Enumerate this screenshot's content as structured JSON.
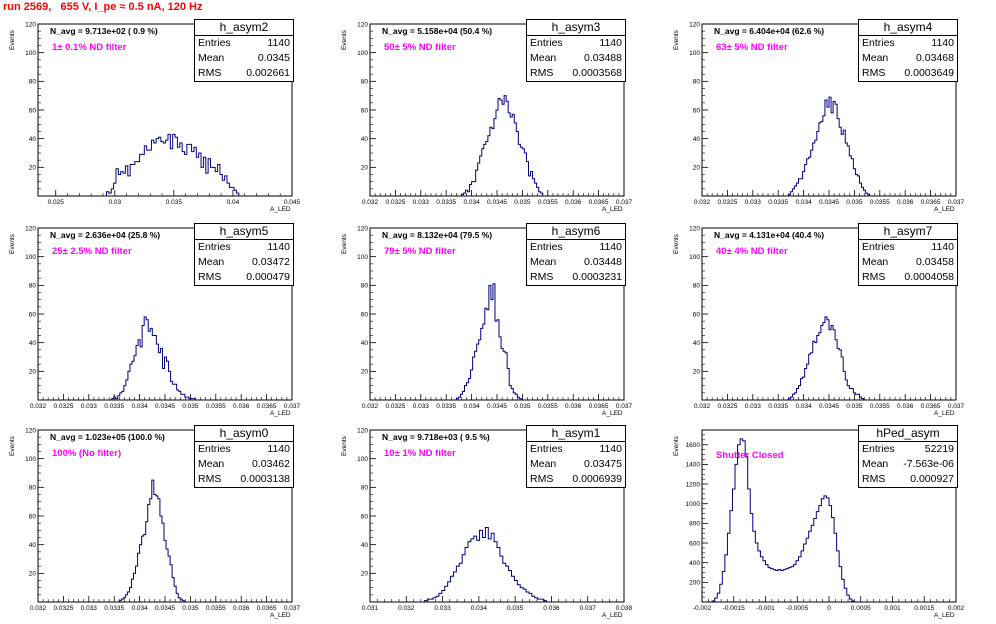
{
  "title": "run 2569,   655 V, I_pe ≈ 0.5 nA, 120 Hz",
  "colors": {
    "title": "#ff0000",
    "hist": "#000080",
    "filter_text": "#ff00ff"
  },
  "stat_labels": {
    "entries": "Entries",
    "mean": "Mean",
    "rms": "RMS"
  },
  "chart_data": [
    {
      "type": "bar",
      "name": "h_asym2",
      "navg": "N_avg = 9.713e+02 ( 0.9 %)",
      "annotation": "1± 0.1% ND filter",
      "stats": {
        "entries": "1140",
        "mean": "0.0345",
        "rms": "0.002661"
      },
      "ylabel": "Events",
      "xlabel": "A_LED",
      "xlim": [
        0.0235,
        0.045
      ],
      "ylim": [
        0,
        120
      ],
      "xticks": [
        0.025,
        0.03,
        0.035,
        0.04,
        0.045
      ],
      "xtick_labels": [
        "0.025",
        "0.03",
        "0.035",
        "0.04",
        "0.045"
      ],
      "yticks": [
        20,
        40,
        60,
        80,
        100,
        120
      ],
      "bins": {
        "start": 0.0293,
        "width": 0.0002,
        "counts": [
          3,
          2,
          5,
          9,
          19,
          15,
          17,
          16,
          21,
          14,
          22,
          22,
          24,
          24,
          29,
          29,
          35,
          32,
          32,
          39,
          37,
          40,
          41,
          38,
          37,
          39,
          43,
          33,
          43,
          41,
          34,
          37,
          31,
          29,
          36,
          36,
          31,
          34,
          27,
          30,
          20,
          27,
          16,
          26,
          20,
          20,
          17,
          22,
          15,
          11,
          14,
          9,
          6,
          6,
          4,
          2
        ]
      }
    },
    {
      "type": "bar",
      "name": "h_asym3",
      "navg": "N_avg = 5.158e+04 (50.4 %)",
      "annotation": "50± 5% ND filter",
      "stats": {
        "entries": "1140",
        "mean": "0.03488",
        "rms": "0.0003568"
      },
      "ylabel": "Events",
      "xlabel": "A_LED",
      "xlim": [
        0.032,
        0.037
      ],
      "ylim": [
        0,
        120
      ],
      "xticks": [
        0.032,
        0.0325,
        0.033,
        0.0335,
        0.034,
        0.0345,
        0.035,
        0.0355,
        0.036,
        0.0365,
        0.037
      ],
      "xtick_labels": [
        "0.032",
        "0.0325",
        "0.033",
        "0.0335",
        "0.034",
        "0.0345",
        "0.035",
        "0.0355",
        "0.036",
        "0.0365",
        "0.037"
      ],
      "yticks": [
        20,
        40,
        60,
        80,
        100,
        120
      ],
      "bins": {
        "start": 0.0338,
        "width": 4e-05,
        "counts": [
          1,
          2,
          4,
          3,
          8,
          10,
          10,
          18,
          23,
          28,
          33,
          36,
          38,
          42,
          48,
          47,
          54,
          60,
          68,
          67,
          64,
          70,
          66,
          58,
          55,
          57,
          51,
          45,
          36,
          34,
          33,
          30,
          24,
          14,
          17,
          12,
          9,
          6,
          3,
          2
        ]
      }
    },
    {
      "type": "bar",
      "name": "h_asym4",
      "navg": "N_avg = 6.404e+04 (62.6 %)",
      "annotation": "63± 5% ND filter",
      "stats": {
        "entries": "1140",
        "mean": "0.03468",
        "rms": "0.0003649"
      },
      "ylabel": "Events",
      "xlabel": "A_LED",
      "xlim": [
        0.032,
        0.037
      ],
      "ylim": [
        0,
        120
      ],
      "xticks": [
        0.032,
        0.0325,
        0.033,
        0.0335,
        0.034,
        0.0345,
        0.035,
        0.0355,
        0.036,
        0.0365,
        0.037
      ],
      "xtick_labels": [
        "0.032",
        "0.0325",
        "0.033",
        "0.0335",
        "0.034",
        "0.0345",
        "0.035",
        "0.0355",
        "0.036",
        "0.0365",
        "0.037"
      ],
      "yticks": [
        20,
        40,
        60,
        80,
        100,
        120
      ],
      "bins": {
        "start": 0.0337,
        "width": 4e-05,
        "counts": [
          1,
          3,
          5,
          7,
          9,
          12,
          12,
          17,
          22,
          26,
          27,
          32,
          37,
          39,
          45,
          51,
          52,
          56,
          67,
          62,
          69,
          58,
          66,
          64,
          54,
          48,
          43,
          46,
          37,
          35,
          28,
          26,
          19,
          15,
          14,
          9,
          6,
          4,
          2,
          1
        ]
      }
    },
    {
      "type": "bar",
      "name": "h_asym5",
      "navg": "N_avg = 2.636e+04 (25.8 %)",
      "annotation": "25± 2.5% ND filter",
      "stats": {
        "entries": "1140",
        "mean": "0.03472",
        "rms": "0.000479"
      },
      "ylabel": "Events",
      "xlabel": "A_LED",
      "xlim": [
        0.032,
        0.037
      ],
      "ylim": [
        0,
        120
      ],
      "xticks": [
        0.032,
        0.0325,
        0.033,
        0.0335,
        0.034,
        0.0345,
        0.035,
        0.0355,
        0.036,
        0.0365,
        0.037
      ],
      "xtick_labels": [
        "0.032",
        "0.0325",
        "0.033",
        "0.0335",
        "0.034",
        "0.0345",
        "0.035",
        "0.0355",
        "0.036",
        "0.0365",
        "0.037"
      ],
      "yticks": [
        20,
        40,
        60,
        80,
        100,
        120
      ],
      "bins": {
        "start": 0.03345,
        "width": 4e-05,
        "counts": [
          1,
          2,
          1,
          3,
          5,
          6,
          10,
          14,
          20,
          25,
          27,
          31,
          38,
          42,
          37,
          52,
          58,
          56,
          48,
          50,
          45,
          45,
          39,
          33,
          36,
          22,
          30,
          27,
          20,
          13,
          11,
          11,
          7,
          6,
          4,
          4,
          2,
          2,
          1,
          1,
          1
        ]
      }
    },
    {
      "type": "bar",
      "name": "h_asym6",
      "navg": "N_avg = 8.132e+04 (79.5 %)",
      "annotation": "79± 5% ND filter",
      "stats": {
        "entries": "1140",
        "mean": "0.03448",
        "rms": "0.0003231"
      },
      "ylabel": "Events",
      "xlabel": "A_LED",
      "xlim": [
        0.032,
        0.037
      ],
      "ylim": [
        0,
        120
      ],
      "xticks": [
        0.032,
        0.0325,
        0.033,
        0.0335,
        0.034,
        0.0345,
        0.035,
        0.0355,
        0.036,
        0.0365,
        0.037
      ],
      "xtick_labels": [
        "0.032",
        "0.0325",
        "0.033",
        "0.0335",
        "0.034",
        "0.0345",
        "0.035",
        "0.0355",
        "0.036",
        "0.0365",
        "0.037"
      ],
      "yticks": [
        20,
        40,
        60,
        80,
        100,
        120
      ],
      "bins": {
        "start": 0.0337,
        "width": 4e-05,
        "counts": [
          1,
          2,
          4,
          6,
          10,
          12,
          15,
          21,
          30,
          34,
          39,
          42,
          50,
          53,
          64,
          63,
          80,
          70,
          81,
          55,
          56,
          44,
          36,
          34,
          33,
          22,
          10,
          8,
          5,
          4,
          2,
          1
        ]
      }
    },
    {
      "type": "bar",
      "name": "h_asym7",
      "navg": "N_avg = 4.131e+04 (40.4 %)",
      "annotation": "40± 4% ND filter",
      "stats": {
        "entries": "1140",
        "mean": "0.03458",
        "rms": "0.0004058"
      },
      "ylabel": "Events",
      "xlabel": "A_LED",
      "xlim": [
        0.032,
        0.037
      ],
      "ylim": [
        0,
        120
      ],
      "xticks": [
        0.032,
        0.0325,
        0.033,
        0.0335,
        0.034,
        0.0345,
        0.035,
        0.0355,
        0.036,
        0.0365,
        0.037
      ],
      "xtick_labels": [
        "0.032",
        "0.0325",
        "0.033",
        "0.0335",
        "0.034",
        "0.0345",
        "0.035",
        "0.0355",
        "0.036",
        "0.0365",
        "0.037"
      ],
      "yticks": [
        20,
        40,
        60,
        80,
        100,
        120
      ],
      "bins": {
        "start": 0.0337,
        "width": 4e-05,
        "counts": [
          1,
          2,
          4,
          5,
          8,
          10,
          15,
          16,
          22,
          25,
          32,
          33,
          41,
          40,
          45,
          47,
          52,
          54,
          58,
          56,
          49,
          52,
          49,
          42,
          36,
          35,
          30,
          20,
          14,
          10,
          8,
          8,
          5,
          4,
          4,
          2,
          1
        ]
      }
    },
    {
      "type": "bar",
      "name": "h_asym0",
      "navg": "N_avg = 1.023e+05 (100.0 %)",
      "annotation": "100% (No filter)",
      "stats": {
        "entries": "1140",
        "mean": "0.03462",
        "rms": "0.0003138"
      },
      "ylabel": "Events",
      "xlabel": "A_LED",
      "xlim": [
        0.032,
        0.037
      ],
      "ylim": [
        0,
        120
      ],
      "xticks": [
        0.032,
        0.0325,
        0.033,
        0.0335,
        0.034,
        0.0345,
        0.035,
        0.0355,
        0.036,
        0.0365,
        0.037
      ],
      "xtick_labels": [
        "0.032",
        "0.0325",
        "0.033",
        "0.0335",
        "0.034",
        "0.0345",
        "0.035",
        "0.0355",
        "0.036",
        "0.0365",
        "0.037"
      ],
      "yticks": [
        20,
        40,
        60,
        80,
        100,
        120
      ],
      "bins": {
        "start": 0.0336,
        "width": 4e-05,
        "counts": [
          1,
          2,
          3,
          5,
          7,
          10,
          16,
          20,
          25,
          34,
          40,
          46,
          47,
          56,
          68,
          72,
          85,
          75,
          74,
          72,
          60,
          55,
          43,
          37,
          32,
          26,
          17,
          11,
          6,
          3,
          2,
          1
        ]
      }
    },
    {
      "type": "bar",
      "name": "h_asym1",
      "navg": "N_avg = 9.718e+03 ( 9.5 %)",
      "annotation": "10± 1% ND filter",
      "stats": {
        "entries": "1140",
        "mean": "0.03475",
        "rms": "0.0006939"
      },
      "ylabel": "Events",
      "xlabel": "A_LED",
      "xlim": [
        0.031,
        0.038
      ],
      "ylim": [
        0,
        120
      ],
      "xticks": [
        0.031,
        0.032,
        0.033,
        0.034,
        0.035,
        0.036,
        0.037,
        0.038
      ],
      "xtick_labels": [
        "0.031",
        "0.032",
        "0.033",
        "0.034",
        "0.035",
        "0.036",
        "0.037",
        "0.038"
      ],
      "yticks": [
        20,
        40,
        60,
        80,
        100,
        120
      ],
      "bins": {
        "start": 0.0325,
        "width": 8e-05,
        "counts": [
          1,
          2,
          2,
          3,
          4,
          6,
          8,
          11,
          14,
          18,
          21,
          25,
          27,
          33,
          38,
          42,
          44,
          46,
          43,
          50,
          45,
          52,
          44,
          48,
          42,
          38,
          32,
          27,
          25,
          22,
          18,
          15,
          12,
          10,
          9,
          7,
          6,
          4,
          3,
          2,
          2,
          1
        ]
      }
    },
    {
      "type": "bar",
      "name": "hPed_asym",
      "navg": "",
      "annotation": "Shutter Closed",
      "stats": {
        "entries": "52219",
        "mean": "-7.563e-06",
        "rms": "0.000927"
      },
      "ylabel": "Events",
      "xlabel": "A_LED",
      "xlim": [
        -0.002,
        0.002
      ],
      "ylim": [
        0,
        1750
      ],
      "xticks": [
        -0.002,
        -0.0015,
        -0.001,
        -0.0005,
        0,
        0.0005,
        0.001,
        0.0015,
        0.002
      ],
      "xtick_labels": [
        "-0.002",
        "-0.0015",
        "-0.001",
        "-0.0005",
        "0",
        "0.0005",
        "0.001",
        "0.0015",
        "0.002"
      ],
      "yticks": [
        200,
        400,
        600,
        800,
        1000,
        1200,
        1400,
        1600
      ],
      "bins": {
        "start": -0.00184,
        "width": 4e-05,
        "counts": [
          10,
          40,
          90,
          180,
          310,
          480,
          700,
          930,
          1150,
          1400,
          1600,
          1660,
          1640,
          1480,
          1150,
          900,
          720,
          600,
          520,
          460,
          420,
          380,
          350,
          340,
          330,
          320,
          330,
          320,
          330,
          340,
          350,
          360,
          380,
          420,
          460,
          520,
          590,
          650,
          720,
          780,
          850,
          920,
          980,
          1050,
          1080,
          1060,
          980,
          860,
          700,
          520,
          360,
          230,
          140,
          70,
          30,
          10
        ]
      }
    }
  ]
}
